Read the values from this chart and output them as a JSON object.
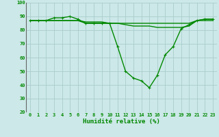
{
  "x": [
    0,
    1,
    2,
    3,
    4,
    5,
    6,
    7,
    8,
    9,
    10,
    11,
    12,
    13,
    14,
    15,
    16,
    17,
    18,
    19,
    20,
    21,
    22,
    23
  ],
  "line1": [
    87,
    87,
    87,
    89,
    89,
    90,
    88,
    85,
    85,
    85,
    85,
    68,
    50,
    45,
    43,
    38,
    47,
    62,
    68,
    81,
    84,
    87,
    88,
    88
  ],
  "line2": [
    87,
    87,
    87,
    87,
    87,
    87,
    87,
    85,
    85,
    85,
    85,
    85,
    84,
    83,
    83,
    83,
    82,
    82,
    82,
    82,
    83,
    87,
    88,
    88
  ],
  "line3": [
    87,
    87,
    87,
    87,
    87,
    87,
    87,
    86,
    86,
    86,
    85,
    85,
    85,
    85,
    85,
    85,
    85,
    85,
    85,
    85,
    85,
    87,
    87,
    87
  ],
  "bg_color": "#cce8e8",
  "grid_color": "#aacccc",
  "line_color": "#008800",
  "axis_color": "#666666",
  "xlabel": "Humidité relative (%)",
  "ylim": [
    20,
    100
  ],
  "xlim": [
    -0.5,
    23.5
  ],
  "yticks": [
    20,
    30,
    40,
    50,
    60,
    70,
    80,
    90,
    100
  ],
  "xticks": [
    0,
    1,
    2,
    3,
    4,
    5,
    6,
    7,
    8,
    9,
    10,
    11,
    12,
    13,
    14,
    15,
    16,
    17,
    18,
    19,
    20,
    21,
    22,
    23
  ],
  "tick_fontsize": 5.0,
  "xlabel_fontsize": 6.5,
  "marker_size": 3.5,
  "linewidth": 1.0
}
